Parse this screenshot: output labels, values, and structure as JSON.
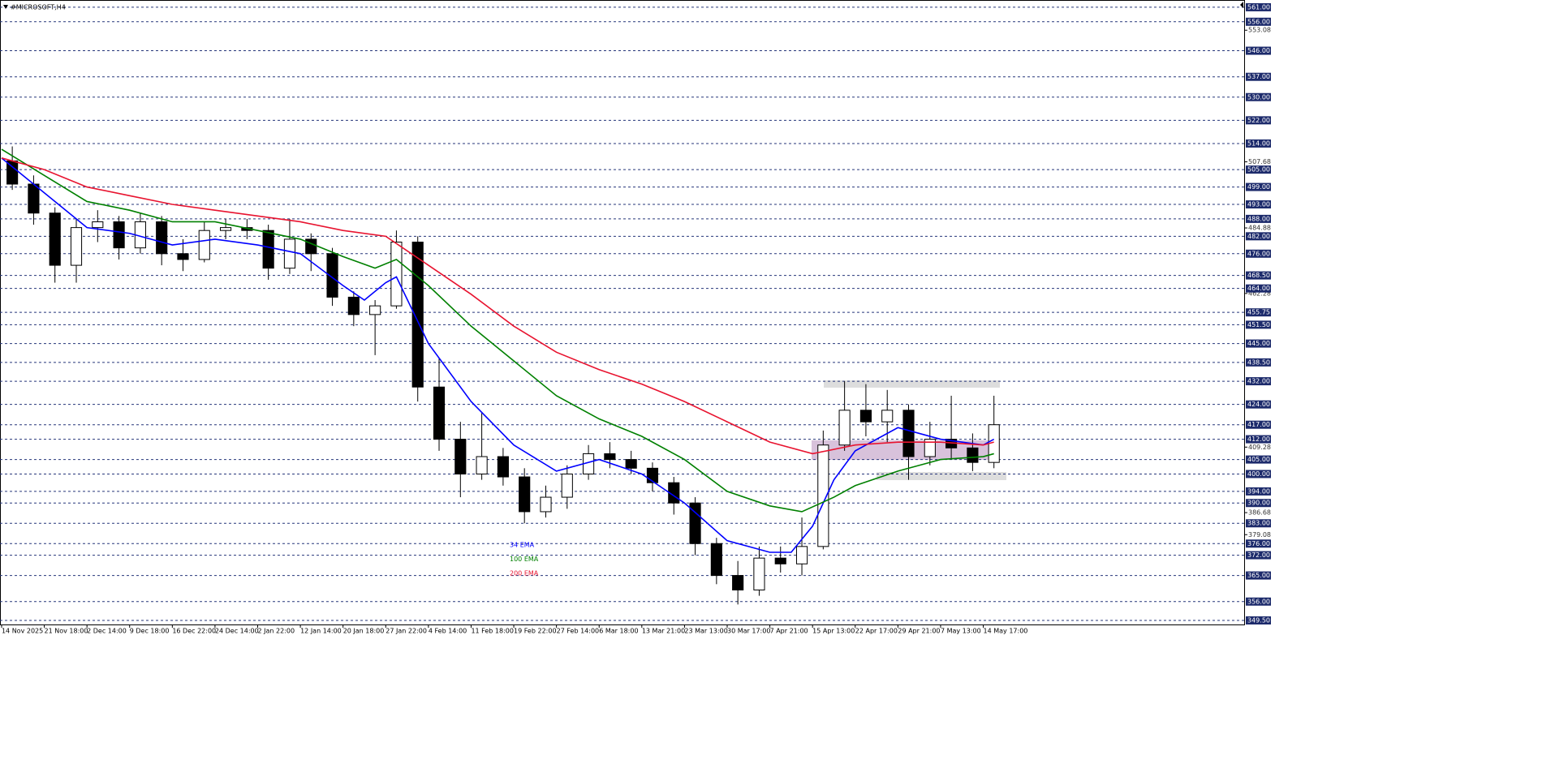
{
  "chart_data": {
    "type": "candlestick",
    "title": "#MICROSOFT,H4",
    "xlim": [
      -0.3,
      232.9
    ],
    "ylim": [
      348.1,
      563.5
    ],
    "xticks": [
      {
        "value": 0,
        "label": "14 Nov 2025"
      },
      {
        "value": 8,
        "label": "21 Nov 18:00"
      },
      {
        "value": 16,
        "label": "2 Dec 14:00"
      },
      {
        "value": 24,
        "label": "9 Dec 18:00"
      },
      {
        "value": 32,
        "label": "16 Dec 22:00"
      },
      {
        "value": 40,
        "label": "24 Dec 14:00"
      },
      {
        "value": 48,
        "label": "2 Jan 22:00"
      },
      {
        "value": 56,
        "label": "12 Jan 14:00"
      },
      {
        "value": 64,
        "label": "20 Jan 18:00"
      },
      {
        "value": 72,
        "label": "27 Jan 22:00"
      },
      {
        "value": 80,
        "label": "4 Feb 14:00"
      },
      {
        "value": 88,
        "label": "11 Feb 18:00"
      },
      {
        "value": 96,
        "label": "19 Feb 22:00"
      },
      {
        "value": 104,
        "label": "27 Feb 14:00"
      },
      {
        "value": 112,
        "label": "6 Mar 18:00"
      },
      {
        "value": 120,
        "label": "13 Mar 21:00"
      },
      {
        "value": 128,
        "label": "23 Mar 13:00"
      },
      {
        "value": 136,
        "label": "30 Mar 17:00"
      },
      {
        "value": 144,
        "label": "7 Apr 21:00"
      },
      {
        "value": 152,
        "label": "15 Apr 13:00"
      },
      {
        "value": 160,
        "label": "22 Apr 17:00"
      },
      {
        "value": 168,
        "label": "29 Apr 21:00"
      },
      {
        "value": 176,
        "label": "7 May 13:00"
      },
      {
        "value": 184,
        "label": "14 May 17:00"
      }
    ],
    "yticks": [
      {
        "value": 553.08,
        "label": "553.08"
      },
      {
        "value": 507.68,
        "label": "507.68"
      },
      {
        "value": 484.88,
        "label": "484.88"
      },
      {
        "value": 462.28,
        "label": "462.28"
      },
      {
        "value": 409.28,
        "label": "409.28"
      },
      {
        "value": 386.68,
        "label": "386.68"
      },
      {
        "value": 379.08,
        "label": "379.08"
      }
    ],
    "levels": [
      {
        "value": 561,
        "label": "561.00"
      },
      {
        "value": 556,
        "label": "556.00"
      },
      {
        "value": 546,
        "label": "546.00"
      },
      {
        "value": 537,
        "label": "537.00"
      },
      {
        "value": 530,
        "label": "530.00"
      },
      {
        "value": 522,
        "label": "522.00"
      },
      {
        "value": 514,
        "label": "514.00"
      },
      {
        "value": 505,
        "label": "505.00"
      },
      {
        "value": 499,
        "label": "499.00"
      },
      {
        "value": 493,
        "label": "493.00"
      },
      {
        "value": 488,
        "label": "488.00"
      },
      {
        "value": 482,
        "label": "482.00"
      },
      {
        "value": 476,
        "label": "476.00"
      },
      {
        "value": 468.5,
        "label": "468.50"
      },
      {
        "value": 464,
        "label": "464.00"
      },
      {
        "value": 455.75,
        "label": "455.75"
      },
      {
        "value": 451.5,
        "label": "451.50"
      },
      {
        "value": 445,
        "label": "445.00"
      },
      {
        "value": 438.5,
        "label": "438.50"
      },
      {
        "value": 432,
        "label": "432.00"
      },
      {
        "value": 424,
        "label": "424.00"
      },
      {
        "value": 417,
        "label": "417.00"
      },
      {
        "value": 412,
        "label": "412.00"
      },
      {
        "value": 405,
        "label": "405.00"
      },
      {
        "value": 400,
        "label": "400.00"
      },
      {
        "value": 394,
        "label": "394.00"
      },
      {
        "value": 390,
        "label": "390.00"
      },
      {
        "value": 383,
        "label": "383.00"
      },
      {
        "value": 376,
        "label": "376.00"
      },
      {
        "value": 372,
        "label": "372.00"
      },
      {
        "value": 365,
        "label": "365.00"
      },
      {
        "value": 356,
        "label": "356.00"
      },
      {
        "value": 349.5,
        "label": "349.50"
      }
    ],
    "x": [
      2,
      6,
      10,
      14,
      18,
      22,
      26,
      30,
      34,
      38,
      42,
      46,
      50,
      54,
      58,
      62,
      66,
      70,
      74,
      78,
      82,
      86,
      90,
      94,
      98,
      102,
      106,
      110,
      114,
      118,
      122,
      126,
      130,
      134,
      138,
      142,
      146,
      150,
      154,
      158,
      162,
      166,
      170,
      174,
      178,
      182,
      186
    ],
    "open": [
      508,
      500,
      490,
      472,
      485,
      487,
      478,
      487,
      476,
      474,
      484,
      485,
      484,
      471,
      481,
      476,
      461,
      455,
      458,
      480,
      430,
      412,
      400,
      406,
      399,
      387,
      392,
      400,
      407,
      405,
      402,
      397,
      390,
      376,
      365,
      360,
      371,
      369,
      375,
      410,
      422,
      418,
      422,
      406,
      412,
      409,
      404
    ],
    "high": [
      513,
      503,
      492,
      488,
      491,
      489,
      490,
      489,
      481,
      487,
      488,
      488,
      486,
      488,
      483,
      478,
      463,
      460,
      484,
      482,
      440,
      418,
      421,
      409,
      402,
      396,
      403,
      410,
      411,
      408,
      404,
      399,
      392,
      378,
      370,
      375,
      375,
      385,
      415,
      432,
      431,
      429,
      424,
      418,
      427,
      414,
      427
    ],
    "low": [
      498,
      486,
      466,
      466,
      480,
      474,
      476,
      472,
      470,
      473,
      481,
      481,
      467,
      469,
      470,
      458,
      451,
      441,
      457,
      425,
      408,
      392,
      398,
      396,
      383,
      385,
      388,
      398,
      402,
      400,
      394,
      386,
      372,
      362,
      355,
      358,
      366,
      365,
      374,
      408,
      413,
      411,
      398,
      403,
      405,
      401,
      402
    ],
    "close": [
      500,
      490,
      472,
      485,
      487,
      478,
      487,
      476,
      474,
      484,
      485,
      484,
      471,
      481,
      476,
      461,
      455,
      458,
      480,
      430,
      412,
      400,
      406,
      399,
      387,
      392,
      400,
      407,
      405,
      402,
      397,
      390,
      376,
      365,
      360,
      371,
      369,
      375,
      410,
      422,
      418,
      422,
      406,
      412,
      409,
      404,
      417
    ],
    "bull_color": "#ffffff",
    "bear_color": "#000000",
    "series": [
      {
        "name": "34 EMA",
        "color": "#0000ff",
        "x": [
          0,
          8,
          16,
          24,
          32,
          40,
          48,
          56,
          64,
          68,
          72,
          74,
          80,
          88,
          96,
          104,
          112,
          120,
          128,
          136,
          144,
          148,
          152,
          156,
          160,
          168,
          176,
          184,
          186
        ],
        "values": [
          509,
          497,
          485,
          483,
          479,
          481,
          479,
          476,
          465,
          460,
          466,
          468,
          445,
          425,
          410,
          401,
          405,
          400,
          390,
          377,
          373,
          373,
          382,
          398,
          408,
          416,
          412,
          410,
          412
        ]
      },
      {
        "name": "100 EMA",
        "color": "#008000",
        "x": [
          0,
          8,
          16,
          24,
          32,
          40,
          48,
          56,
          64,
          70,
          74,
          80,
          88,
          96,
          104,
          112,
          120,
          128,
          136,
          144,
          150,
          156,
          160,
          168,
          176,
          184,
          186
        ],
        "values": [
          512,
          503,
          494,
          491,
          487,
          487,
          484,
          481,
          475,
          471,
          474,
          465,
          451,
          439,
          427,
          419,
          413,
          405,
          394,
          389,
          387,
          392,
          396,
          401,
          405,
          406,
          407
        ]
      },
      {
        "name": "200 EMA",
        "color": "#e8132f",
        "x": [
          0,
          8,
          16,
          24,
          32,
          40,
          48,
          56,
          64,
          72,
          80,
          88,
          96,
          104,
          112,
          120,
          128,
          136,
          144,
          152,
          160,
          168,
          176,
          184,
          186
        ],
        "values": [
          509,
          505,
          499,
          496,
          493,
          491,
          489,
          487,
          484,
          482,
          472,
          462,
          451,
          442,
          436,
          431,
          425,
          418,
          411,
          407,
          410,
          411,
          411,
          410,
          411
        ]
      }
    ]
  }
}
